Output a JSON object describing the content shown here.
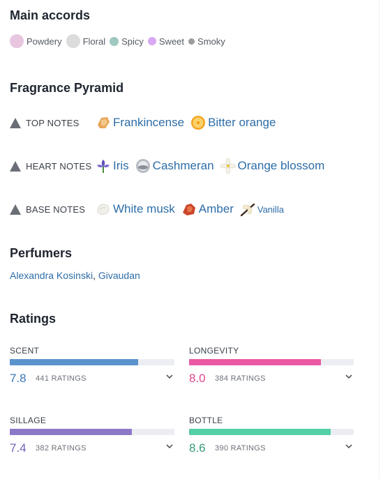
{
  "main_accords": {
    "title": "Main accords",
    "items": [
      {
        "label": "Powdery",
        "color": "#e8c6e0",
        "size": 20
      },
      {
        "label": "Floral",
        "color": "#dcdcdc",
        "size": 20
      },
      {
        "label": "Spicy",
        "color": "#9fc8c0",
        "size": 13
      },
      {
        "label": "Sweet",
        "color": "#d9a8f2",
        "size": 12
      },
      {
        "label": "Smoky",
        "color": "#9c9c9c",
        "size": 9
      }
    ]
  },
  "pyramid": {
    "title": "Fragrance Pyramid",
    "rows": [
      {
        "label": "TOP NOTES",
        "notes": [
          {
            "name": "Frankincense",
            "icon": "frankincense-icon"
          },
          {
            "name": "Bitter orange",
            "icon": "bitter-orange-icon"
          }
        ]
      },
      {
        "label": "HEART NOTES",
        "notes": [
          {
            "name": "Iris",
            "icon": "iris-icon"
          },
          {
            "name": "Cashmeran",
            "icon": "cashmeran-icon"
          },
          {
            "name": "Orange blossom",
            "icon": "orange-blossom-icon"
          }
        ]
      },
      {
        "label": "BASE NOTES",
        "notes": [
          {
            "name": "White musk",
            "icon": "white-musk-icon"
          },
          {
            "name": "Amber",
            "icon": "amber-icon"
          },
          {
            "name": "Vanilla",
            "icon": "vanilla-icon"
          }
        ]
      }
    ]
  },
  "perfumers": {
    "title": "Perfumers",
    "names": [
      "Alexandra Kosinski",
      "Givaudan"
    ],
    "separator": ", "
  },
  "ratings": {
    "title": "Ratings",
    "items": [
      {
        "label": "SCENT",
        "value": "7.8",
        "count": "441 RATINGS",
        "fill": 0.78,
        "color": "#5b93cc",
        "value_color": "#3a78b8"
      },
      {
        "label": "LONGEVITY",
        "value": "8.0",
        "count": "384 RATINGS",
        "fill": 0.8,
        "color": "#ea5aa4",
        "value_color": "#e0468f"
      },
      {
        "label": "SILLAGE",
        "value": "7.4",
        "count": "382 RATINGS",
        "fill": 0.74,
        "color": "#8d78c8",
        "value_color": "#7560b8"
      },
      {
        "label": "BOTTLE",
        "value": "8.6",
        "count": "390 RATINGS",
        "fill": 0.86,
        "color": "#55cfa4",
        "value_color": "#3a9a7a"
      }
    ]
  }
}
